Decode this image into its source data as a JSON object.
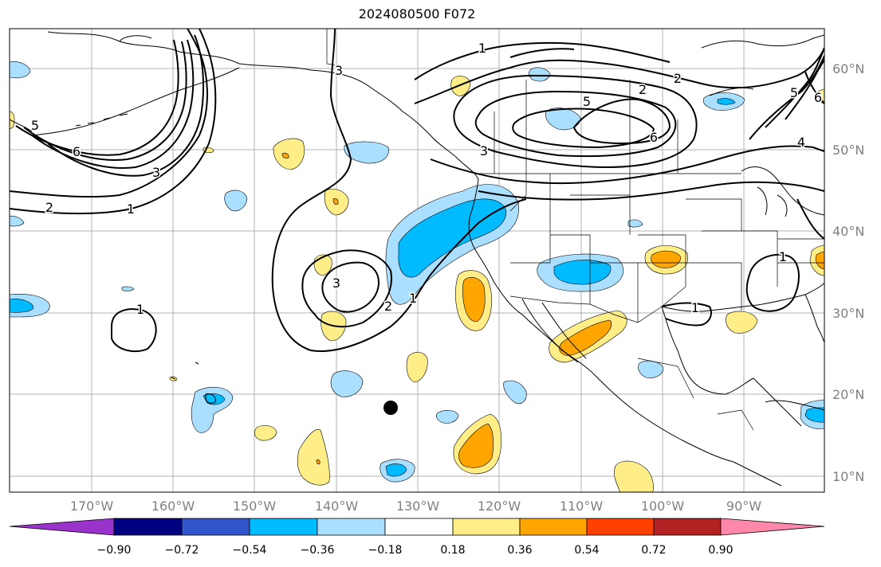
{
  "title": "2024080500 F072",
  "lat_labels": [
    "60°N",
    "50°N",
    "40°N",
    "30°N",
    "20°N",
    "10°N"
  ],
  "lon_labels": [
    "170°W",
    "160°W",
    "150°W",
    "140°W",
    "130°W",
    "120°W",
    "110°W",
    "100°W",
    "90°W"
  ],
  "contour_labels": [
    "1",
    "2",
    "3",
    "4",
    "5",
    "6"
  ],
  "colorbar": {
    "ticks": [
      "−0.90",
      "−0.72",
      "−0.54",
      "−0.36",
      "−0.18",
      "0.18",
      "0.36",
      "0.54",
      "0.72",
      "0.90"
    ],
    "colors": [
      "#9933cc",
      "#000080",
      "#3355cc",
      "#00bbff",
      "#aadfff",
      "#ffffff",
      "#ffee88",
      "#ffa500",
      "#ff4000",
      "#b22222",
      "#ff88aa"
    ]
  }
}
